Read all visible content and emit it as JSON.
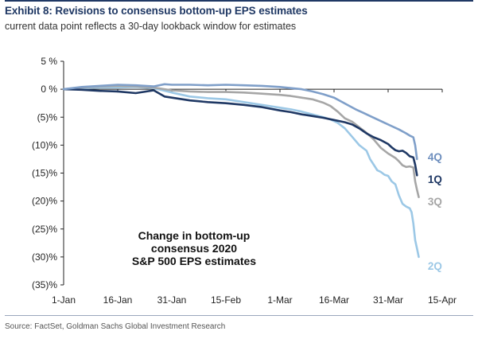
{
  "header": {
    "title": "Exhibit 8: Revisions to consensus bottom-up EPS estimates",
    "subtitle": "current data point reflects a 30-day lookback window for estimates"
  },
  "footer": {
    "source": "Source: FactSet, Goldman Sachs Global Investment Research"
  },
  "chart_data": {
    "type": "line",
    "title": "",
    "xlabel": "",
    "ylabel": "",
    "ylim": [
      -35,
      5
    ],
    "yticks": [
      5,
      0,
      -5,
      -10,
      -15,
      -20,
      -25,
      -30,
      -35
    ],
    "ytick_labels": [
      "5 %",
      "0 %",
      "(5)%",
      "(10)%",
      "(15)%",
      "(20)%",
      "(25)%",
      "(30)%",
      "(35)%"
    ],
    "xlim": [
      0,
      105
    ],
    "x_unit": "days since 1-Jan",
    "xticks": [
      0,
      15,
      30,
      45,
      60,
      75,
      90,
      105
    ],
    "xtick_labels": [
      "1-Jan",
      "16-Jan",
      "31-Jan",
      "15-Feb",
      "1-Mar",
      "16-Mar",
      "31-Mar",
      "15-Apr"
    ],
    "grid": false,
    "annotation": [
      "Change in bottom-up",
      "consensus 2020",
      "S&P 500 EPS estimates"
    ],
    "series": [
      {
        "name": "2Q",
        "color": "#9cc8e6",
        "label_color": "#9cc8e6",
        "x": [
          0,
          5,
          10,
          15,
          20,
          25,
          30,
          35,
          40,
          45,
          50,
          55,
          60,
          63,
          66,
          69,
          72,
          74,
          76,
          78,
          80,
          82,
          84,
          85,
          86,
          87,
          88,
          89,
          90,
          91,
          92,
          93,
          94,
          95,
          96,
          96.5,
          97,
          97.5,
          98,
          98.5
        ],
        "y": [
          0,
          0.2,
          0.3,
          0.3,
          0.4,
          0.2,
          -0.6,
          -1.3,
          -1.6,
          -1.8,
          -2.3,
          -2.8,
          -3.3,
          -3.6,
          -4.0,
          -4.5,
          -5.0,
          -5.4,
          -6.0,
          -7.0,
          -8.5,
          -10.0,
          -11.0,
          -12.5,
          -13.5,
          -14.5,
          -14.8,
          -15.3,
          -15.5,
          -16.5,
          -17.0,
          -19.0,
          -20.5,
          -21.0,
          -21.3,
          -22.0,
          -24.0,
          -27.0,
          -28.5,
          -30.0
        ]
      },
      {
        "name": "3Q",
        "color": "#a6a6a6",
        "label_color": "#a6a6a6",
        "x": [
          0,
          5,
          10,
          15,
          20,
          25,
          30,
          35,
          40,
          45,
          50,
          55,
          60,
          63,
          66,
          69,
          72,
          74,
          76,
          78,
          80,
          82,
          84,
          86,
          88,
          90,
          92,
          93,
          94,
          95,
          96,
          97,
          97.5,
          98,
          98.5
        ],
        "y": [
          0,
          0.3,
          0.5,
          0.6,
          0.5,
          0.3,
          -0.2,
          -0.4,
          -0.5,
          -0.5,
          -0.6,
          -0.8,
          -1.0,
          -1.2,
          -1.5,
          -1.8,
          -2.4,
          -3.0,
          -4.0,
          -5.2,
          -5.8,
          -6.8,
          -7.8,
          -9.0,
          -10.5,
          -11.5,
          -12.3,
          -12.9,
          -13.6,
          -13.9,
          -13.8,
          -14.0,
          -16.5,
          -18.0,
          -19.3
        ]
      },
      {
        "name": "1Q",
        "color": "#1f3864",
        "label_color": "#1f3864",
        "x": [
          0,
          5,
          10,
          15,
          20,
          25,
          28,
          30,
          35,
          40,
          45,
          50,
          55,
          60,
          63,
          66,
          69,
          72,
          75,
          78,
          80,
          82,
          84,
          86,
          88,
          90,
          91,
          92,
          93,
          94,
          95,
          96,
          97,
          97.5,
          98
        ],
        "y": [
          0,
          -0.1,
          -0.3,
          -0.4,
          -0.7,
          -0.2,
          -1.3,
          -1.5,
          -2.0,
          -2.3,
          -2.5,
          -2.8,
          -3.2,
          -3.8,
          -4.1,
          -4.5,
          -4.8,
          -5.1,
          -5.5,
          -5.9,
          -6.3,
          -7.0,
          -7.9,
          -8.6,
          -9.1,
          -9.8,
          -10.4,
          -10.9,
          -11.1,
          -11.0,
          -11.4,
          -12.0,
          -12.2,
          -13.5,
          -15.4
        ]
      },
      {
        "name": "4Q",
        "color": "#7f9fc9",
        "label_color": "#6e8fbe",
        "x": [
          0,
          5,
          10,
          15,
          20,
          25,
          28,
          30,
          35,
          40,
          45,
          50,
          55,
          60,
          63,
          66,
          69,
          72,
          75,
          77,
          79,
          81,
          83,
          85,
          87,
          89,
          91,
          93,
          95,
          96,
          97,
          97.5,
          98
        ],
        "y": [
          0,
          0.4,
          0.6,
          0.8,
          0.7,
          0.5,
          0.9,
          0.8,
          0.8,
          0.7,
          0.8,
          0.7,
          0.6,
          0.4,
          0.2,
          0.0,
          -0.4,
          -0.9,
          -1.5,
          -2.2,
          -2.9,
          -3.6,
          -4.2,
          -4.8,
          -5.4,
          -6.0,
          -6.6,
          -7.2,
          -7.9,
          -8.3,
          -8.6,
          -10.0,
          -12.5
        ]
      }
    ],
    "series_labels": [
      {
        "series": "4Q",
        "text": "4Q",
        "x": 101,
        "y": -12.8
      },
      {
        "series": "1Q",
        "text": "1Q",
        "x": 101,
        "y": -16.8
      },
      {
        "series": "3Q",
        "text": "3Q",
        "x": 101,
        "y": -20.8
      },
      {
        "series": "2Q",
        "text": "2Q",
        "x": 101,
        "y": -32.3
      }
    ]
  }
}
